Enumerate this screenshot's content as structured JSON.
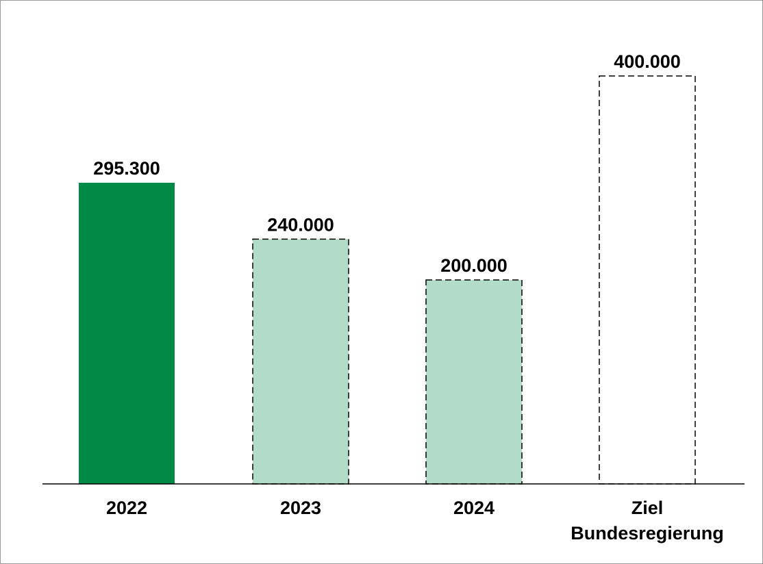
{
  "chart_data": {
    "type": "bar",
    "categories": [
      [
        "2022"
      ],
      [
        "2023"
      ],
      [
        "2024"
      ],
      [
        "Ziel",
        "Bundesregierung"
      ]
    ],
    "values": [
      295300,
      240000,
      200000,
      400000
    ],
    "value_labels": [
      "295.300",
      "240.000",
      "200.000",
      "400.000"
    ],
    "ylim": [
      0,
      400000
    ],
    "grid": false,
    "legend": "none",
    "bar_styles": [
      {
        "fill": "#008a45",
        "stroke": "none",
        "dashed": false
      },
      {
        "fill": "#b3dcc8",
        "stroke": "#000000",
        "dashed": true
      },
      {
        "fill": "#b3dcc8",
        "stroke": "#000000",
        "dashed": true
      },
      {
        "fill": "#ffffff",
        "stroke": "#000000",
        "dashed": true
      }
    ],
    "frame_color": "#999999",
    "axis_color": "#000000"
  }
}
